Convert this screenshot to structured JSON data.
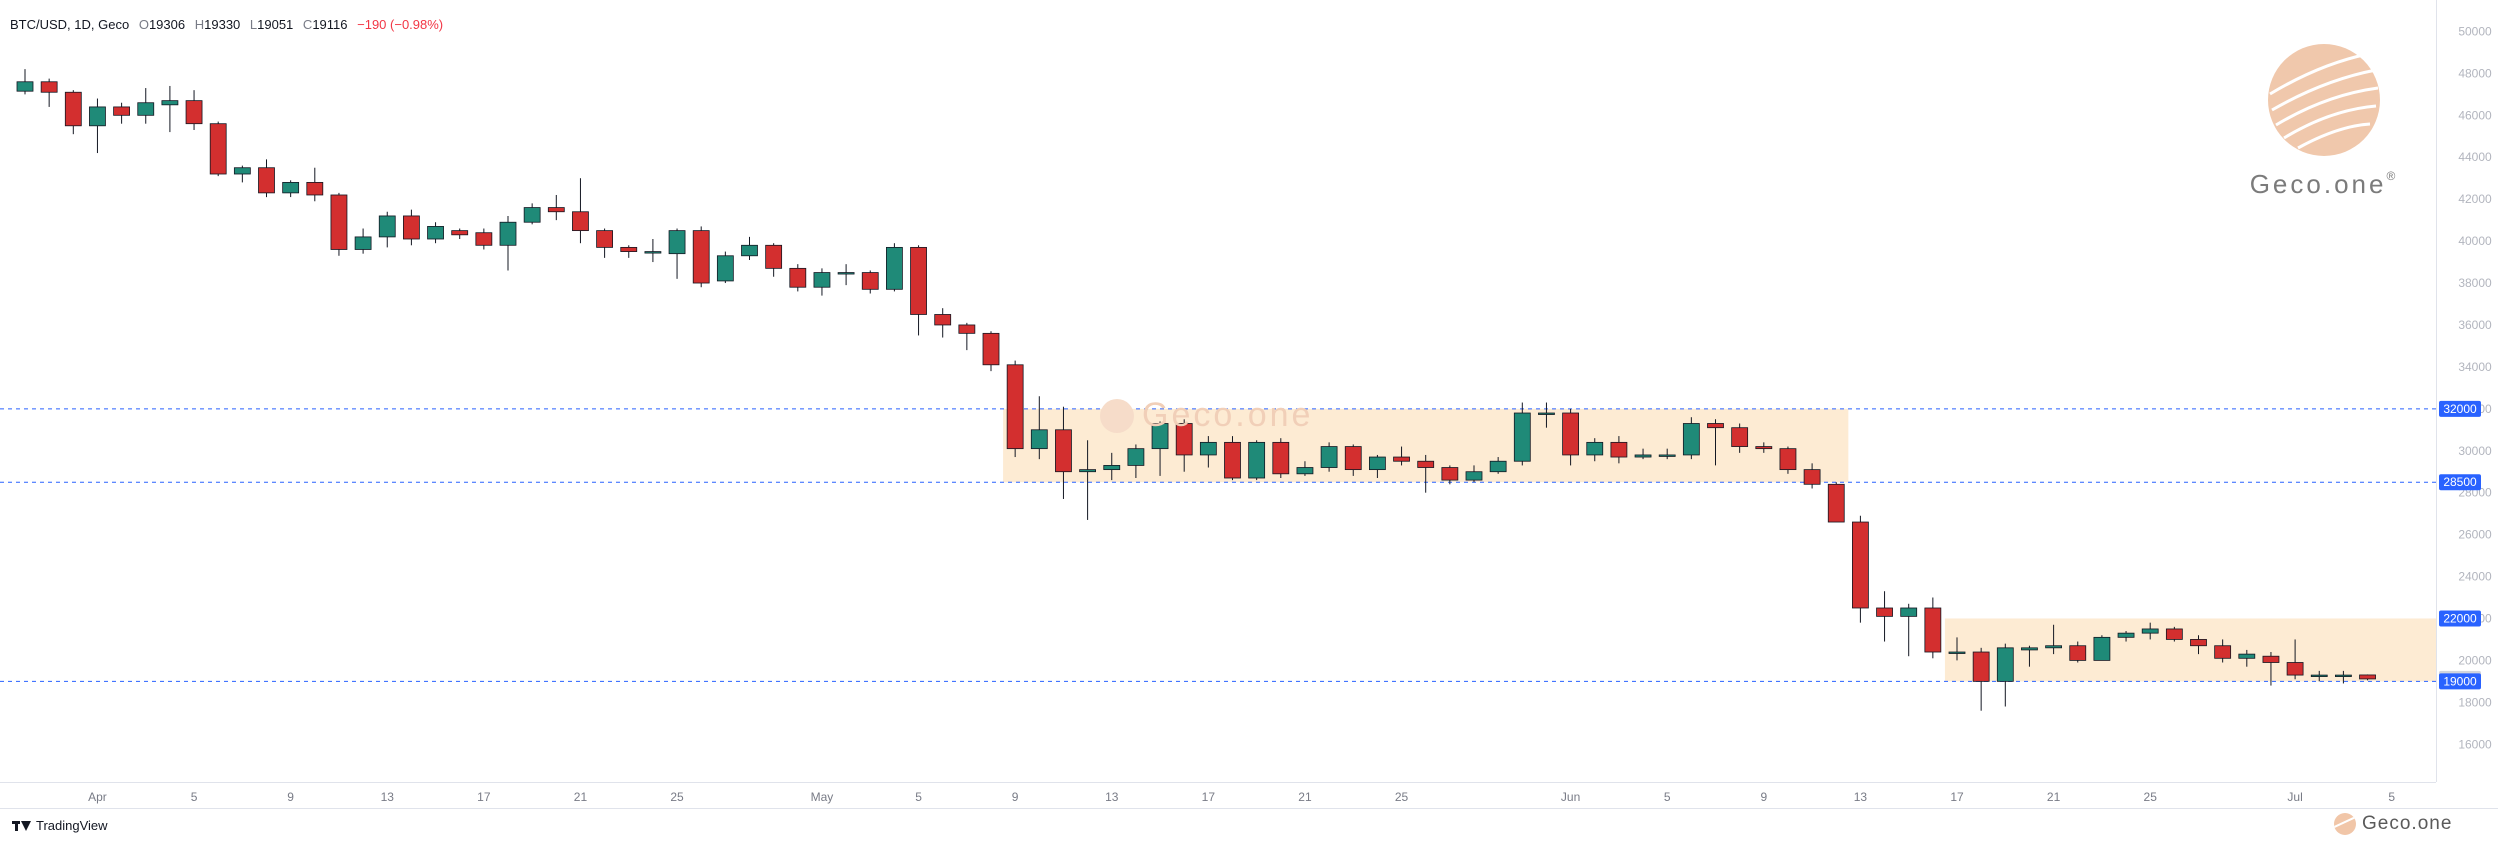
{
  "legend": {
    "symbol": "BTC/USD, 1D, Geco",
    "open_label": "O",
    "open": "19306",
    "high_label": "H",
    "high": "19330",
    "low_label": "L",
    "low": "19051",
    "close_label": "C",
    "close": "19116",
    "change": "−190 (−0.98%)"
  },
  "footer": {
    "tradingview": "TradingView",
    "brand": "Geco.one"
  },
  "watermark": {
    "main": "Geco.one",
    "mark": "®",
    "center": "Geco.one"
  },
  "colors": {
    "up": "#1f8a78",
    "down": "#d32f2f",
    "wick": "#131722",
    "zone": "#fdebd3",
    "level_line": "#2962ff",
    "last_price": "#d1d4dc"
  },
  "chart_data": {
    "type": "candlestick",
    "title": "BTC/USD, 1D, Geco",
    "y_range": [
      14200,
      51500
    ],
    "y_ticks": [
      16000,
      18000,
      20000,
      22000,
      24000,
      26000,
      28000,
      30000,
      32000,
      34000,
      36000,
      38000,
      40000,
      42000,
      44000,
      46000,
      48000,
      50000
    ],
    "x_tick_labels": [
      {
        "label": "Apr",
        "index": 3
      },
      {
        "label": "5",
        "index": 7
      },
      {
        "label": "9",
        "index": 11
      },
      {
        "label": "13",
        "index": 15
      },
      {
        "label": "17",
        "index": 19
      },
      {
        "label": "21",
        "index": 23
      },
      {
        "label": "25",
        "index": 27
      },
      {
        "label": "May",
        "index": 33
      },
      {
        "label": "5",
        "index": 37
      },
      {
        "label": "9",
        "index": 41
      },
      {
        "label": "13",
        "index": 45
      },
      {
        "label": "17",
        "index": 49
      },
      {
        "label": "21",
        "index": 53
      },
      {
        "label": "25",
        "index": 57
      },
      {
        "label": "Jun",
        "index": 64
      },
      {
        "label": "5",
        "index": 68
      },
      {
        "label": "9",
        "index": 72
      },
      {
        "label": "13",
        "index": 76
      },
      {
        "label": "17",
        "index": 80
      },
      {
        "label": "21",
        "index": 84
      },
      {
        "label": "25",
        "index": 88
      },
      {
        "label": "Jul",
        "index": 94
      },
      {
        "label": "5",
        "index": 98
      }
    ],
    "horizontal_levels": [
      32000,
      28500,
      19000
    ],
    "price_labels": [
      {
        "text": "32000",
        "value": 32000,
        "style": "level"
      },
      {
        "text": "28500",
        "value": 28500,
        "style": "level"
      },
      {
        "text": "22000",
        "value": 22000,
        "style": "level"
      },
      {
        "text": "19116",
        "value": 19116,
        "style": "last"
      },
      {
        "text": "19000",
        "value": 19000,
        "style": "level"
      }
    ],
    "zones": [
      {
        "from_index": 41,
        "to_index": 75,
        "low": 28500,
        "high": 32000
      },
      {
        "from_index": 80,
        "to_index": 101,
        "low": 19000,
        "high": 22000
      }
    ],
    "candles": [
      [
        47150,
        47600,
        48200,
        47000
      ],
      [
        47600,
        47100,
        47750,
        46400
      ],
      [
        47100,
        45500,
        47200,
        45100
      ],
      [
        45500,
        46400,
        46800,
        44200
      ],
      [
        46400,
        46000,
        46600,
        45600
      ],
      [
        46000,
        46600,
        47300,
        45600
      ],
      [
        46500,
        46700,
        47400,
        45200
      ],
      [
        46700,
        45600,
        47200,
        45300
      ],
      [
        45600,
        43200,
        45700,
        43100
      ],
      [
        43200,
        43500,
        43600,
        42800
      ],
      [
        43500,
        42300,
        43900,
        42100
      ],
      [
        42300,
        42800,
        42900,
        42100
      ],
      [
        42800,
        42200,
        43500,
        41900
      ],
      [
        42200,
        39600,
        42300,
        39300
      ],
      [
        39600,
        40200,
        40600,
        39400
      ],
      [
        40200,
        41200,
        41400,
        39700
      ],
      [
        41200,
        40100,
        41500,
        39800
      ],
      [
        40100,
        40700,
        40900,
        39900
      ],
      [
        40500,
        40300,
        40600,
        40100
      ],
      [
        40400,
        39800,
        40600,
        39600
      ],
      [
        39800,
        40900,
        41200,
        38600
      ],
      [
        40900,
        41600,
        41800,
        40800
      ],
      [
        41600,
        41400,
        42200,
        41000
      ],
      [
        41400,
        40500,
        43000,
        39900
      ],
      [
        40500,
        39700,
        40600,
        39200
      ],
      [
        39700,
        39500,
        39800,
        39200
      ],
      [
        39500,
        39500,
        40100,
        39000
      ],
      [
        39400,
        40500,
        40600,
        38200
      ],
      [
        40500,
        38000,
        40700,
        37800
      ],
      [
        38100,
        39300,
        39500,
        38000
      ],
      [
        39300,
        39800,
        40200,
        39100
      ],
      [
        39800,
        38700,
        39900,
        38300
      ],
      [
        38700,
        37800,
        38900,
        37600
      ],
      [
        37800,
        38500,
        38700,
        37400
      ],
      [
        38500,
        38500,
        38900,
        37900
      ],
      [
        38500,
        37700,
        38600,
        37500
      ],
      [
        37700,
        39700,
        39900,
        37600
      ],
      [
        39700,
        36500,
        39800,
        35500
      ],
      [
        36500,
        36000,
        36800,
        35400
      ],
      [
        36000,
        35600,
        36100,
        34800
      ],
      [
        35600,
        34100,
        35700,
        33800
      ],
      [
        34100,
        30100,
        34300,
        29700
      ],
      [
        30100,
        31000,
        32600,
        29600
      ],
      [
        31000,
        29000,
        32100,
        27700
      ],
      [
        29000,
        29100,
        30500,
        26700
      ],
      [
        29100,
        29300,
        29900,
        28600
      ],
      [
        29300,
        30100,
        30300,
        28700
      ],
      [
        30100,
        31300,
        31400,
        28800
      ],
      [
        31300,
        29800,
        31500,
        29000
      ],
      [
        29800,
        30400,
        30700,
        29200
      ],
      [
        30400,
        28700,
        30700,
        28600
      ],
      [
        28700,
        30400,
        30500,
        28600
      ],
      [
        30400,
        28900,
        30600,
        28700
      ],
      [
        28900,
        29200,
        29500,
        28800
      ],
      [
        29200,
        30200,
        30400,
        29000
      ],
      [
        30200,
        29100,
        30300,
        28800
      ],
      [
        29100,
        29700,
        29800,
        28700
      ],
      [
        29700,
        29500,
        30200,
        29300
      ],
      [
        29500,
        29200,
        29800,
        28000
      ],
      [
        29200,
        28600,
        29300,
        28400
      ],
      [
        28600,
        29000,
        29300,
        28500
      ],
      [
        29000,
        29500,
        29700,
        28900
      ],
      [
        29500,
        31800,
        32300,
        29300
      ],
      [
        31800,
        31800,
        32300,
        31100
      ],
      [
        31800,
        29800,
        32000,
        29300
      ],
      [
        29800,
        30400,
        30600,
        29500
      ],
      [
        30400,
        29700,
        30700,
        29400
      ],
      [
        29700,
        29800,
        30100,
        29600
      ],
      [
        29800,
        29800,
        30100,
        29600
      ],
      [
        29800,
        31300,
        31600,
        29600
      ],
      [
        31300,
        31100,
        31500,
        29300
      ],
      [
        31100,
        30200,
        31300,
        29900
      ],
      [
        30200,
        30100,
        30400,
        29900
      ],
      [
        30100,
        29100,
        30200,
        28900
      ],
      [
        29100,
        28400,
        29400,
        28200
      ],
      [
        28400,
        26600,
        28500,
        26600
      ],
      [
        26600,
        22500,
        26900,
        21800
      ],
      [
        22500,
        22100,
        23300,
        20900
      ],
      [
        22100,
        22500,
        22700,
        20200
      ],
      [
        22500,
        20400,
        23000,
        20100
      ],
      [
        20400,
        20400,
        21100,
        20000
      ],
      [
        20400,
        19000,
        20600,
        17600
      ],
      [
        19000,
        20600,
        20800,
        17800
      ],
      [
        20500,
        20600,
        20700,
        19700
      ],
      [
        20600,
        20700,
        21700,
        20300
      ],
      [
        20700,
        20000,
        20900,
        19900
      ],
      [
        20000,
        21100,
        21200,
        20000
      ],
      [
        21100,
        21300,
        21400,
        20900
      ],
      [
        21300,
        21500,
        21800,
        21000
      ],
      [
        21500,
        21000,
        21600,
        20900
      ],
      [
        21000,
        20700,
        21200,
        20300
      ],
      [
        20700,
        20100,
        21000,
        19900
      ],
      [
        20100,
        20300,
        20500,
        19700
      ],
      [
        20200,
        19900,
        20400,
        18800
      ],
      [
        19900,
        19300,
        21000,
        19100
      ],
      [
        19300,
        19300,
        19500,
        19000
      ],
      [
        19300,
        19300,
        19500,
        18900
      ],
      [
        19306,
        19116,
        19330,
        19051
      ]
    ]
  }
}
